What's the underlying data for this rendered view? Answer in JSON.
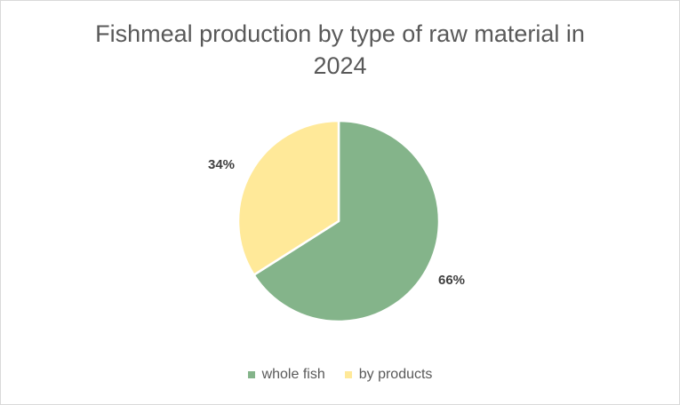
{
  "chart": {
    "title_line1": "Fishmeal production by type of raw material in",
    "title_line2": "2024",
    "labels": {
      "whole_fish": "66%",
      "by_products": "34%"
    },
    "legend": [
      {
        "label": "whole fish",
        "color": "#84b48a"
      },
      {
        "label": "by products",
        "color": "#ffe999"
      }
    ]
  },
  "chart_data": {
    "type": "pie",
    "title": "Fishmeal production by type of raw material in 2024",
    "categories": [
      "whole fish",
      "by products"
    ],
    "values": [
      66,
      34
    ],
    "unit": "%",
    "colors": [
      "#84b48a",
      "#ffe999"
    ],
    "data_labels": [
      "66%",
      "34%"
    ],
    "legend_position": "bottom",
    "start_angle_deg": 0,
    "direction": "clockwise"
  }
}
